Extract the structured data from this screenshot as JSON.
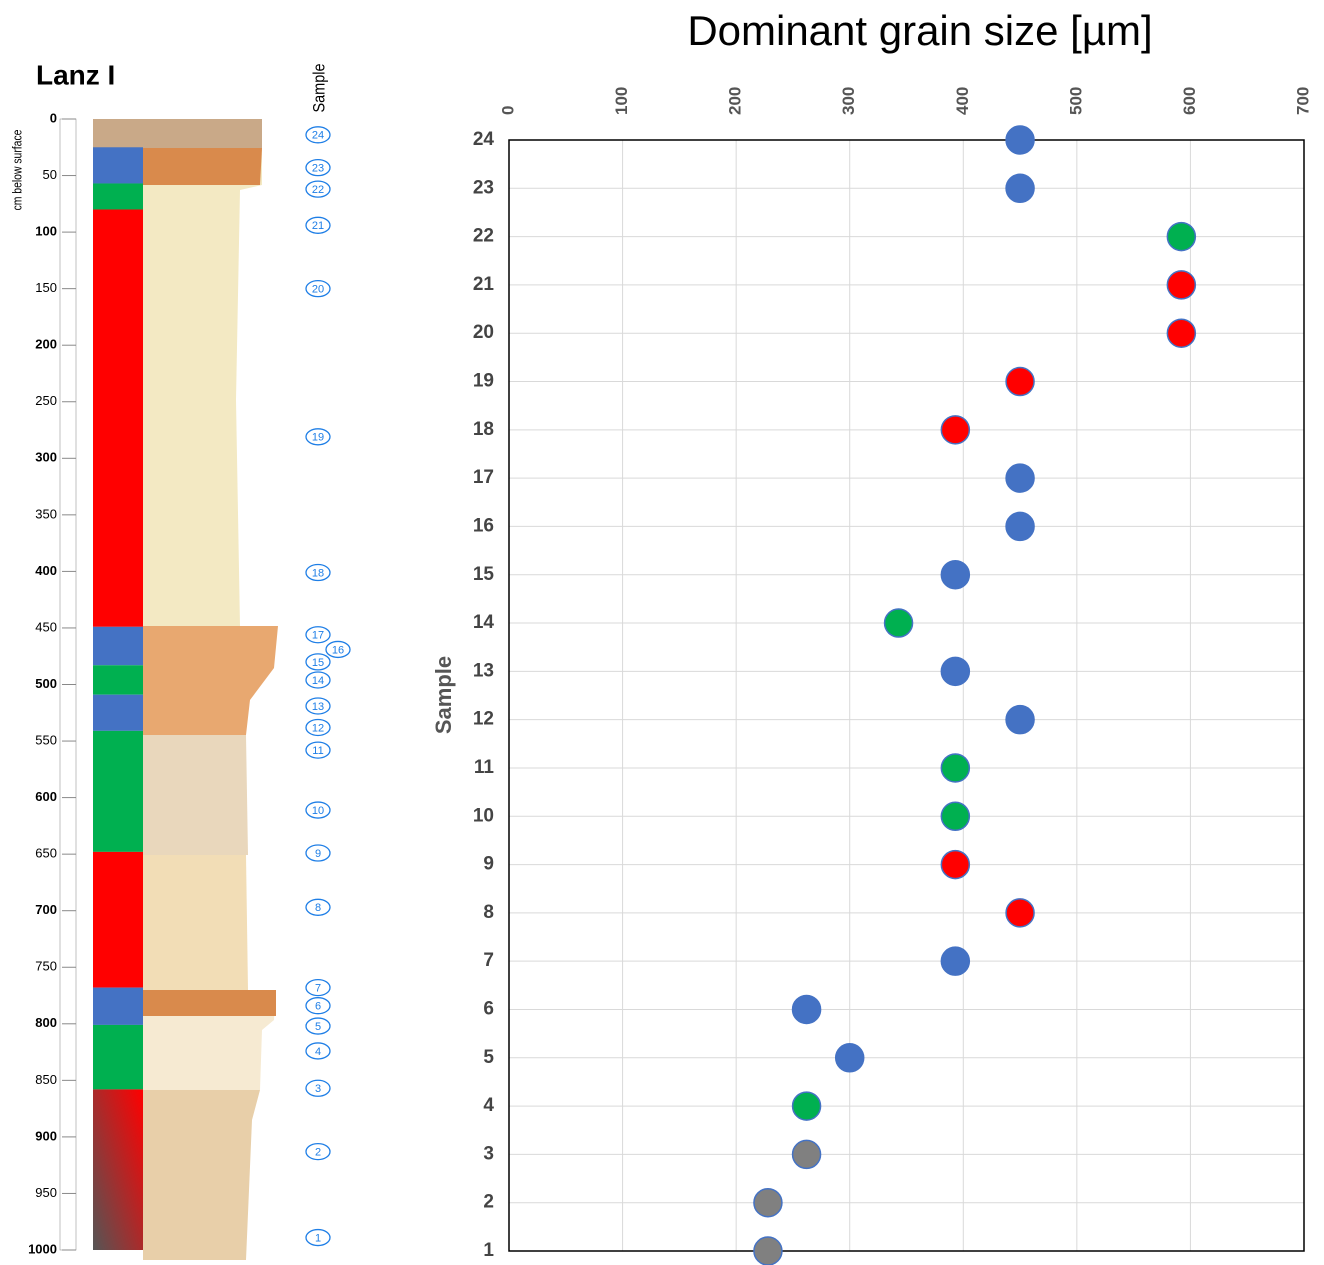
{
  "chart_data": [
    {
      "type": "profile",
      "title": "Lanz I",
      "ylabel": "cm below surface",
      "sample_label": "Sample",
      "ylim": [
        0,
        1000
      ],
      "yticks": [
        0,
        50,
        100,
        150,
        200,
        250,
        300,
        350,
        400,
        450,
        500,
        550,
        600,
        650,
        700,
        750,
        800,
        850,
        900,
        950,
        1000
      ],
      "layers": [
        {
          "top": 25,
          "bottom": 57,
          "colors": [
            "#4472c4"
          ]
        },
        {
          "top": 57,
          "bottom": 80,
          "colors": [
            "#00b050"
          ]
        },
        {
          "top": 80,
          "bottom": 449,
          "colors": [
            "#ff0000"
          ]
        },
        {
          "top": 449,
          "bottom": 483,
          "colors": [
            "#4472c4"
          ]
        },
        {
          "top": 483,
          "bottom": 509,
          "colors": [
            "#00b050"
          ]
        },
        {
          "top": 509,
          "bottom": 541,
          "colors": [
            "#4472c4"
          ]
        },
        {
          "top": 541,
          "bottom": 648,
          "colors": [
            "#00b050"
          ]
        },
        {
          "top": 648,
          "bottom": 768,
          "colors": [
            "#ff0000"
          ]
        },
        {
          "top": 768,
          "bottom": 801,
          "colors": [
            "#4472c4"
          ]
        },
        {
          "top": 801,
          "bottom": 858,
          "colors": [
            "#00b050"
          ]
        },
        {
          "top": 858,
          "bottom": 1000,
          "colors": [
            "#ff0000",
            "#555555"
          ]
        }
      ],
      "samples": [
        {
          "label": "1",
          "depth": 989
        },
        {
          "label": "2",
          "depth": 913
        },
        {
          "label": "3",
          "depth": 857
        },
        {
          "label": "4",
          "depth": 824
        },
        {
          "label": "5",
          "depth": 802
        },
        {
          "label": "6",
          "depth": 784
        },
        {
          "label": "7",
          "depth": 768
        },
        {
          "label": "8",
          "depth": 697
        },
        {
          "label": "9",
          "depth": 649
        },
        {
          "label": "10",
          "depth": 611
        },
        {
          "label": "11",
          "depth": 558
        },
        {
          "label": "12",
          "depth": 538
        },
        {
          "label": "13",
          "depth": 519
        },
        {
          "label": "14",
          "depth": 496
        },
        {
          "label": "15",
          "depth": 480
        },
        {
          "label": "16",
          "depth": 469
        },
        {
          "label": "17",
          "depth": 456
        },
        {
          "label": "18",
          "depth": 401
        },
        {
          "label": "19",
          "depth": 281
        },
        {
          "label": "20",
          "depth": 150
        },
        {
          "label": "21",
          "depth": 94
        },
        {
          "label": "22",
          "depth": 62
        },
        {
          "label": "23",
          "depth": 43
        },
        {
          "label": "24",
          "depth": 14
        }
      ]
    },
    {
      "type": "scatter",
      "title": "Dominant grain size [µm]",
      "ylabel": "Sample",
      "x": [
        228,
        228,
        262,
        262,
        300,
        262,
        393,
        450,
        393,
        393,
        393,
        450,
        393,
        343,
        393,
        450,
        450,
        393,
        450,
        592,
        592,
        592,
        450,
        450
      ],
      "y": [
        1,
        2,
        3,
        4,
        5,
        6,
        7,
        8,
        9,
        10,
        11,
        12,
        13,
        14,
        15,
        16,
        17,
        18,
        19,
        20,
        21,
        22,
        23,
        24
      ],
      "colors": [
        "#808080",
        "#808080",
        "#808080",
        "#00b050",
        "#4472c4",
        "#4472c4",
        "#4472c4",
        "#ff0000",
        "#ff0000",
        "#00b050",
        "#00b050",
        "#4472c4",
        "#4472c4",
        "#00b050",
        "#4472c4",
        "#4472c4",
        "#4472c4",
        "#ff0000",
        "#ff0000",
        "#ff0000",
        "#ff0000",
        "#00b050",
        "#4472c4",
        "#4472c4"
      ],
      "xlim": [
        0,
        700
      ],
      "xticks": [
        0,
        100,
        200,
        300,
        400,
        500,
        600,
        700
      ],
      "ylim": [
        1,
        24
      ],
      "yticks": [
        1,
        2,
        3,
        4,
        5,
        6,
        7,
        8,
        9,
        10,
        11,
        12,
        13,
        14,
        15,
        16,
        17,
        18,
        19,
        20,
        21,
        22,
        23,
        24
      ],
      "grid": true
    }
  ]
}
